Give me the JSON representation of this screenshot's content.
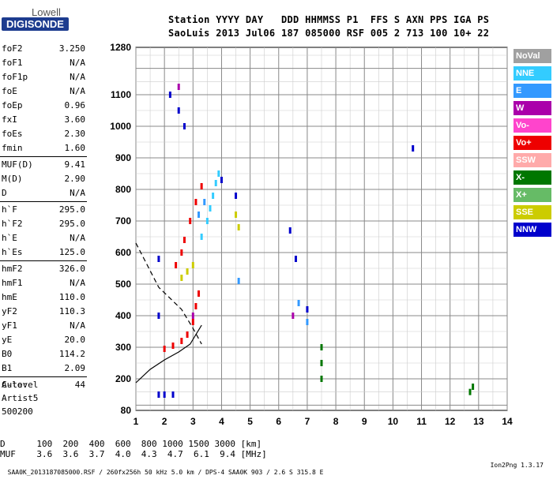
{
  "header": {
    "logo_top": "Lowell",
    "logo_bottom": "DIGISONDE",
    "line1": "Station YYYY DAY   DDD HHMMSS P1  FFS S AXN PPS IGA PS",
    "line2": "SaoLuis 2013 Jul06 187 085000 RSF 005 2 713 100 10+ 22"
  },
  "params": [
    {
      "k": "foF2",
      "v": "3.250"
    },
    {
      "k": "foF1",
      "v": "N/A"
    },
    {
      "k": "foF1p",
      "v": "N/A"
    },
    {
      "k": "foE",
      "v": "N/A"
    },
    {
      "k": "foEp",
      "v": "0.96"
    },
    {
      "k": "fxI",
      "v": "3.60"
    },
    {
      "k": "foEs",
      "v": "2.30"
    },
    {
      "k": "fmin",
      "v": "1.60"
    },
    {
      "k": "MUF(D)",
      "v": "9.41"
    },
    {
      "k": "M(D)",
      "v": "2.90"
    },
    {
      "k": "D",
      "v": "N/A"
    },
    {
      "k": "h`F",
      "v": "295.0"
    },
    {
      "k": "h`F2",
      "v": "295.0"
    },
    {
      "k": "h`E",
      "v": "N/A"
    },
    {
      "k": "h`Es",
      "v": "125.0"
    },
    {
      "k": "hmF2",
      "v": "326.0"
    },
    {
      "k": "hmF1",
      "v": "N/A"
    },
    {
      "k": "hmE",
      "v": "110.0"
    },
    {
      "k": "yF2",
      "v": "110.3"
    },
    {
      "k": "yF1",
      "v": "N/A"
    },
    {
      "k": "yE",
      "v": "20.0"
    },
    {
      "k": "B0",
      "v": "114.2"
    },
    {
      "k": "B1",
      "v": "2.09"
    },
    {
      "k": "C-level",
      "v": "44"
    }
  ],
  "auto": {
    "l1": "Auto:",
    "l2": "Artist5",
    "l3": "500200"
  },
  "legend": [
    {
      "label": "NoVal",
      "color": "#a0a0a0"
    },
    {
      "label": "NNE",
      "color": "#33ccff"
    },
    {
      "label": "E",
      "color": "#3399ff"
    },
    {
      "label": "W",
      "color": "#aa00aa"
    },
    {
      "label": "Vo-",
      "color": "#ff44cc"
    },
    {
      "label": "Vo+",
      "color": "#ee0000"
    },
    {
      "label": "SSW",
      "color": "#ffaaaa"
    },
    {
      "label": "X-",
      "color": "#007700"
    },
    {
      "label": "X+",
      "color": "#66bb66"
    },
    {
      "label": "SSE",
      "color": "#cccc00"
    },
    {
      "label": "NNW",
      "color": "#0000cc"
    }
  ],
  "bottom": {
    "d_row": "D      100  200  400  600  800 1000 1500 3000 [km]",
    "muf_row": "MUF    3.6  3.6  3.7  4.0  4.3  4.7  6.1  9.4 [MHz]",
    "footer_left": "SAA0K_2013187085000.RSF / 260fx256h 50 kHz 5.0 km / DPS-4 SAA0K 903 / 2.6 S 315.8 E",
    "footer_right": "Ion2Png 1.3.17"
  },
  "chart_data": {
    "type": "scatter",
    "xlabel": "",
    "ylabel": "",
    "xlim": [
      1,
      14
    ],
    "ylim": [
      80,
      1280
    ],
    "x_ticks": [
      1,
      2,
      3,
      4,
      5,
      6,
      7,
      8,
      9,
      10,
      11,
      12,
      13,
      14
    ],
    "y_ticks": [
      80,
      200,
      300,
      400,
      500,
      600,
      700,
      800,
      900,
      1000,
      1100,
      1280
    ],
    "y_mapping": [
      [
        80,
        0
      ],
      [
        200,
        0.1
      ],
      [
        300,
        0.2
      ],
      [
        400,
        0.3
      ],
      [
        500,
        0.4
      ],
      [
        600,
        0.5
      ],
      [
        700,
        0.6
      ],
      [
        800,
        0.7
      ],
      [
        900,
        0.8
      ],
      [
        1000,
        0.9
      ],
      [
        1100,
        1.0
      ],
      [
        1280,
        1.15
      ]
    ],
    "grid": true,
    "series": [
      {
        "name": "Vo+",
        "color": "#ee0000",
        "points": [
          [
            2.0,
            295
          ],
          [
            2.3,
            305
          ],
          [
            2.6,
            320
          ],
          [
            2.8,
            340
          ],
          [
            3.0,
            380
          ],
          [
            3.1,
            430
          ],
          [
            3.2,
            470
          ],
          [
            2.4,
            560
          ],
          [
            2.6,
            600
          ],
          [
            2.7,
            640
          ],
          [
            2.9,
            700
          ],
          [
            3.1,
            760
          ],
          [
            3.3,
            810
          ]
        ]
      },
      {
        "name": "SSE",
        "color": "#cccc00",
        "points": [
          [
            2.6,
            520
          ],
          [
            2.8,
            540
          ],
          [
            3.0,
            560
          ],
          [
            4.5,
            720
          ],
          [
            4.6,
            680
          ]
        ]
      },
      {
        "name": "NNE",
        "color": "#33ccff",
        "points": [
          [
            3.5,
            700
          ],
          [
            3.6,
            740
          ],
          [
            3.7,
            780
          ],
          [
            3.8,
            820
          ],
          [
            3.9,
            850
          ],
          [
            3.3,
            650
          ]
        ]
      },
      {
        "name": "NNW",
        "color": "#0000cc",
        "points": [
          [
            1.8,
            140
          ],
          [
            2.0,
            140
          ],
          [
            2.3,
            140
          ],
          [
            1.8,
            400
          ],
          [
            1.8,
            580
          ],
          [
            2.2,
            1100
          ],
          [
            2.5,
            1050
          ],
          [
            2.7,
            1000
          ],
          [
            4.0,
            830
          ],
          [
            4.5,
            780
          ],
          [
            6.4,
            670
          ],
          [
            6.6,
            580
          ],
          [
            7.0,
            420
          ],
          [
            10.7,
            930
          ]
        ]
      },
      {
        "name": "X-",
        "color": "#007700",
        "points": [
          [
            7.5,
            200
          ],
          [
            7.5,
            250
          ],
          [
            7.5,
            300
          ],
          [
            12.7,
            150
          ],
          [
            12.8,
            170
          ]
        ]
      },
      {
        "name": "E",
        "color": "#3399ff",
        "points": [
          [
            3.2,
            720
          ],
          [
            3.4,
            760
          ],
          [
            4.6,
            510
          ],
          [
            6.7,
            440
          ],
          [
            7.0,
            380
          ]
        ]
      },
      {
        "name": "W",
        "color": "#aa00aa",
        "points": [
          [
            2.5,
            1130
          ],
          [
            3.0,
            400
          ],
          [
            6.5,
            400
          ]
        ]
      }
    ],
    "curves": [
      {
        "name": "dashed",
        "style": "dashed",
        "points": [
          [
            1.0,
            630
          ],
          [
            1.8,
            490
          ],
          [
            2.6,
            420
          ],
          [
            3.0,
            360
          ],
          [
            3.3,
            310
          ]
        ]
      },
      {
        "name": "solid",
        "style": "solid",
        "points": [
          [
            1.0,
            185
          ],
          [
            1.5,
            230
          ],
          [
            2.0,
            260
          ],
          [
            2.5,
            285
          ],
          [
            2.9,
            310
          ],
          [
            3.1,
            340
          ],
          [
            3.3,
            370
          ]
        ]
      }
    ]
  }
}
